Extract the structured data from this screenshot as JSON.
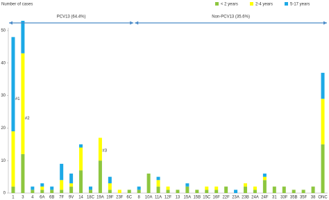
{
  "chart_data": {
    "type": "stacked_bar",
    "y_label": "Number of cases",
    "categories": [
      "1",
      "3",
      "4",
      "6A",
      "6B",
      "7F",
      "9V",
      "14",
      "18C",
      "19A",
      "19F",
      "23F",
      "6C",
      "8",
      "10A",
      "11A",
      "12F",
      "13",
      "15A",
      "15B",
      "15C",
      "16F",
      "22F",
      "23A",
      "23B",
      "24A",
      "24F",
      "31",
      "33F",
      "35B",
      "35F",
      "38",
      "ONC"
    ],
    "series": [
      {
        "name": "< 2 years",
        "color": "#8dc63f",
        "values": [
          2,
          12,
          1,
          1,
          1,
          1,
          2,
          7,
          1,
          10,
          1,
          0,
          1,
          1,
          6,
          2,
          1,
          1,
          2,
          1,
          1,
          1,
          2,
          0,
          2,
          1,
          4,
          2,
          2,
          1,
          1,
          2,
          15
        ]
      },
      {
        "name": "2-4 years",
        "color": "#ffff00",
        "values": [
          17,
          31,
          0,
          1,
          0,
          3,
          1,
          7,
          0,
          7,
          2,
          1,
          0,
          0,
          0,
          2,
          1,
          0,
          0,
          0,
          1,
          1,
          0,
          0,
          1,
          1,
          1,
          0,
          0,
          0,
          0,
          0,
          14
        ]
      },
      {
        "name": "5-17 years",
        "color": "#1ca9e6",
        "values": [
          29,
          10,
          1,
          1,
          1,
          5,
          3,
          1,
          1,
          0,
          2,
          0,
          0,
          1,
          0,
          1,
          0,
          0,
          1,
          0,
          0,
          0,
          0,
          1,
          0,
          0,
          1,
          0,
          0,
          0,
          0,
          0,
          8
        ]
      }
    ],
    "group_labels": [
      "PCV13 (64.4%)",
      "Non-PCV13 (35.6%)"
    ],
    "annotations": [
      "#1",
      "#2",
      "#3"
    ],
    "ylim": [
      0,
      50
    ],
    "yticks": [
      0,
      10,
      20,
      30,
      40,
      50
    ]
  }
}
